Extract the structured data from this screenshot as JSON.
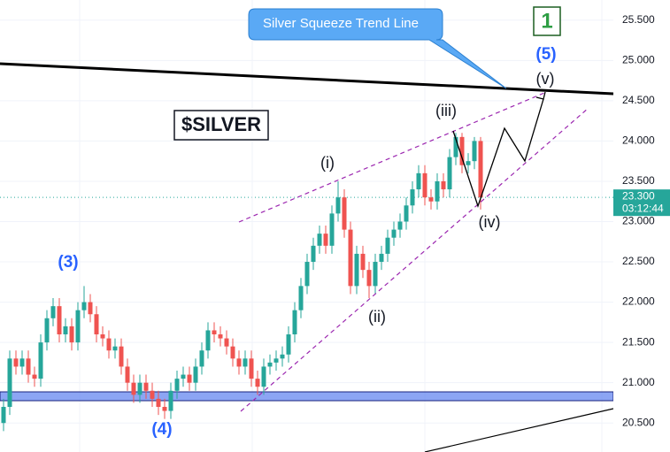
{
  "chart_data": {
    "type": "candlestick",
    "candles": {
      "open": [
        20.5,
        20.7,
        21.3,
        21.2,
        21.3,
        21.1,
        21.05,
        21.5,
        21.8,
        21.95,
        21.6,
        21.7,
        21.5,
        21.9,
        22.0,
        21.85,
        21.6,
        21.55,
        21.4,
        21.45,
        21.2,
        21.0,
        20.85,
        21.0,
        20.9,
        20.8,
        20.7,
        20.65,
        20.9,
        21.05,
        21.1,
        21.0,
        21.2,
        21.4,
        21.65,
        21.6,
        21.55,
        21.45,
        21.3,
        21.2,
        21.3,
        21.05,
        20.95,
        21.2,
        21.25,
        21.3,
        21.35,
        21.6,
        21.9,
        22.2,
        22.5,
        22.7,
        22.85,
        22.7,
        23.1,
        23.3,
        22.9,
        22.2,
        22.6,
        22.4,
        22.2,
        22.5,
        22.6,
        22.8,
        22.9,
        23.0,
        23.2,
        23.4,
        23.6,
        23.3,
        23.25,
        23.5,
        23.4,
        23.8,
        24.05,
        23.7,
        23.75,
        24.0
      ],
      "high": [
        20.8,
        21.4,
        21.4,
        21.4,
        21.4,
        21.2,
        21.6,
        21.9,
        22.05,
        22.05,
        21.8,
        21.8,
        22.0,
        22.2,
        22.1,
        21.95,
        21.7,
        21.65,
        21.55,
        21.55,
        21.3,
        21.1,
        21.1,
        21.1,
        21.0,
        20.9,
        20.8,
        21.0,
        21.15,
        21.2,
        21.2,
        21.3,
        21.5,
        21.75,
        21.75,
        21.7,
        21.65,
        21.55,
        21.4,
        21.4,
        21.4,
        21.15,
        21.3,
        21.35,
        21.4,
        21.45,
        21.7,
        22.0,
        22.3,
        22.6,
        22.8,
        22.95,
        22.95,
        23.2,
        23.5,
        23.4,
        23.0,
        22.7,
        22.7,
        22.5,
        22.6,
        22.7,
        22.9,
        23.0,
        23.1,
        23.3,
        23.5,
        23.7,
        23.7,
        23.4,
        23.6,
        23.6,
        23.9,
        24.1,
        24.1,
        23.85,
        24.05,
        24.05
      ],
      "low": [
        20.4,
        20.6,
        21.1,
        21.1,
        21.0,
        20.95,
        20.95,
        21.4,
        21.7,
        21.5,
        21.5,
        21.4,
        21.4,
        21.8,
        21.75,
        21.5,
        21.45,
        21.3,
        21.3,
        21.1,
        20.9,
        20.75,
        20.75,
        20.8,
        20.7,
        20.6,
        20.55,
        20.55,
        20.8,
        20.95,
        20.9,
        20.9,
        21.1,
        21.3,
        21.5,
        21.45,
        21.35,
        21.2,
        21.1,
        21.1,
        20.95,
        20.85,
        20.85,
        21.1,
        21.15,
        21.2,
        21.25,
        21.5,
        21.8,
        22.1,
        22.4,
        22.6,
        22.6,
        22.6,
        23.0,
        22.8,
        22.1,
        22.1,
        22.3,
        22.05,
        22.1,
        22.4,
        22.5,
        22.7,
        22.8,
        22.9,
        23.1,
        23.3,
        23.2,
        23.15,
        23.15,
        23.3,
        23.3,
        23.7,
        23.6,
        23.6,
        23.65,
        23.15
      ],
      "close": [
        20.7,
        21.3,
        21.2,
        21.3,
        21.1,
        21.05,
        21.5,
        21.8,
        21.95,
        21.6,
        21.7,
        21.5,
        21.9,
        22.0,
        21.85,
        21.6,
        21.55,
        21.4,
        21.45,
        21.2,
        21.0,
        20.85,
        21.0,
        20.9,
        20.8,
        20.7,
        20.65,
        20.9,
        21.05,
        21.1,
        21.0,
        21.2,
        21.4,
        21.65,
        21.6,
        21.55,
        21.45,
        21.3,
        21.2,
        21.3,
        21.05,
        20.95,
        21.2,
        21.25,
        21.3,
        21.35,
        21.6,
        21.9,
        22.2,
        22.5,
        22.7,
        22.85,
        22.7,
        23.1,
        23.3,
        22.9,
        22.2,
        22.6,
        22.4,
        22.2,
        22.5,
        22.6,
        22.8,
        22.9,
        23.0,
        23.2,
        23.4,
        23.6,
        23.3,
        23.25,
        23.5,
        23.4,
        23.8,
        24.05,
        23.7,
        23.75,
        24.0,
        23.3
      ]
    },
    "up_color": "#26a69a",
    "down_color": "#ef5350",
    "ylim": [
      20.14,
      25.75
    ],
    "yticks": [
      {
        "value": 25.5,
        "label": "25.500"
      },
      {
        "value": 25,
        "label": "25.000"
      },
      {
        "value": 24.5,
        "label": "24.500"
      },
      {
        "value": 24,
        "label": "24.000"
      },
      {
        "value": 23.5,
        "label": "23.500"
      },
      {
        "value": 23,
        "label": "23.000"
      },
      {
        "value": 22.5,
        "label": "22.500"
      },
      {
        "value": 22,
        "label": "22.000"
      },
      {
        "value": 21.5,
        "label": "21.500"
      },
      {
        "value": 21,
        "label": "21.000"
      },
      {
        "value": 20.5,
        "label": "20.500"
      }
    ],
    "grid": true,
    "last_price": {
      "value": 23.3,
      "label": "23.300"
    },
    "countdown": "03:12:44",
    "annotations": {
      "callout": "Silver Squeeze Trend Line",
      "badge": "1",
      "symbol": "$SILVER",
      "wave_5": "(5)",
      "wave_v": "(v)",
      "wave_iii": "(iii)",
      "wave_i": "(i)",
      "wave_ii": "(ii)",
      "wave_iv": "(iv)",
      "wave_3": "(3)",
      "wave_4": "(4)"
    }
  }
}
